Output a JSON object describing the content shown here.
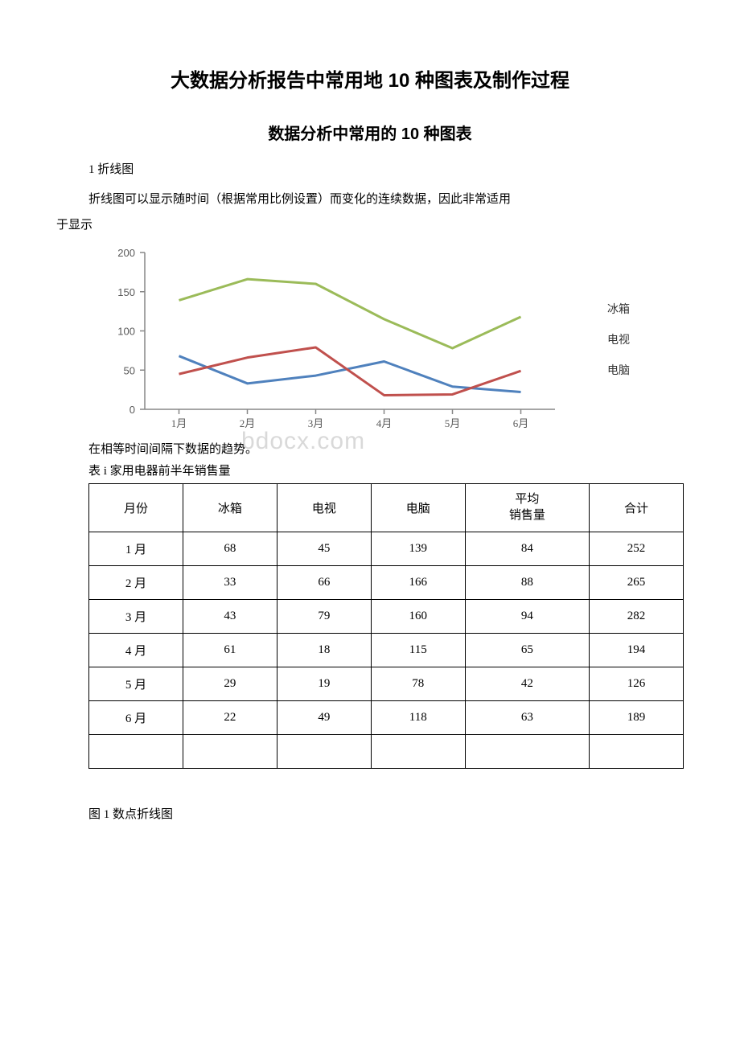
{
  "title_main": "大数据分析报告中常用地 10 种图表及制作过程",
  "title_sub": "数据分析中常用的 10 种图表",
  "section_heading": "1 折线图",
  "paragraph1": "折线图可以显示随时间（根据常用比例设置）而变化的连续数据，因此非常适用",
  "paragraph2": "于显示",
  "chart": {
    "type": "line",
    "categories": [
      "1月",
      "2月",
      "3月",
      "4月",
      "5月",
      "6月"
    ],
    "series": {
      "冰箱": {
        "values": [
          68,
          33,
          43,
          61,
          29,
          22
        ],
        "color": "#4f81bd"
      },
      "电视": {
        "values": [
          45,
          66,
          79,
          18,
          19,
          49
        ],
        "color": "#c0504d"
      },
      "电脑": {
        "values": [
          139,
          166,
          160,
          115,
          78,
          118
        ],
        "color": "#9bbb59"
      }
    },
    "legend_labels": [
      "冰箱",
      "电视",
      "电脑"
    ],
    "ylim": [
      0,
      200
    ],
    "ytick_step": 50,
    "axis_color": "#878787",
    "grid_color": "#d9d9d9",
    "line_width": 3,
    "label_fontsize": 13,
    "label_color": "#595959",
    "background_color": "#ffffff"
  },
  "caption_trend": "在相等时间间隔下数据的趋势。",
  "caption_table": "表 i 家用电器前半年销售量",
  "watermark": "bdocx.com",
  "table": {
    "columns": [
      "月份",
      "冰箱",
      "电视",
      "电脑",
      "平均\n销售量",
      "合计"
    ],
    "rows": [
      [
        "1 月",
        "68",
        "45",
        "139",
        "84",
        "252"
      ],
      [
        "2 月",
        "33",
        "66",
        "166",
        "88",
        "265"
      ],
      [
        "3 月",
        "43",
        "79",
        "160",
        "94",
        "282"
      ],
      [
        "4 月",
        "61",
        "18",
        "115",
        "65",
        "194"
      ],
      [
        "5 月",
        "29",
        "19",
        "78",
        "42",
        "126"
      ],
      [
        "6 月",
        "22",
        "49",
        "118",
        "63",
        "189"
      ],
      [
        "",
        "",
        "",
        "",
        "",
        ""
      ]
    ]
  },
  "figure_caption": "图 1 数点折线图"
}
